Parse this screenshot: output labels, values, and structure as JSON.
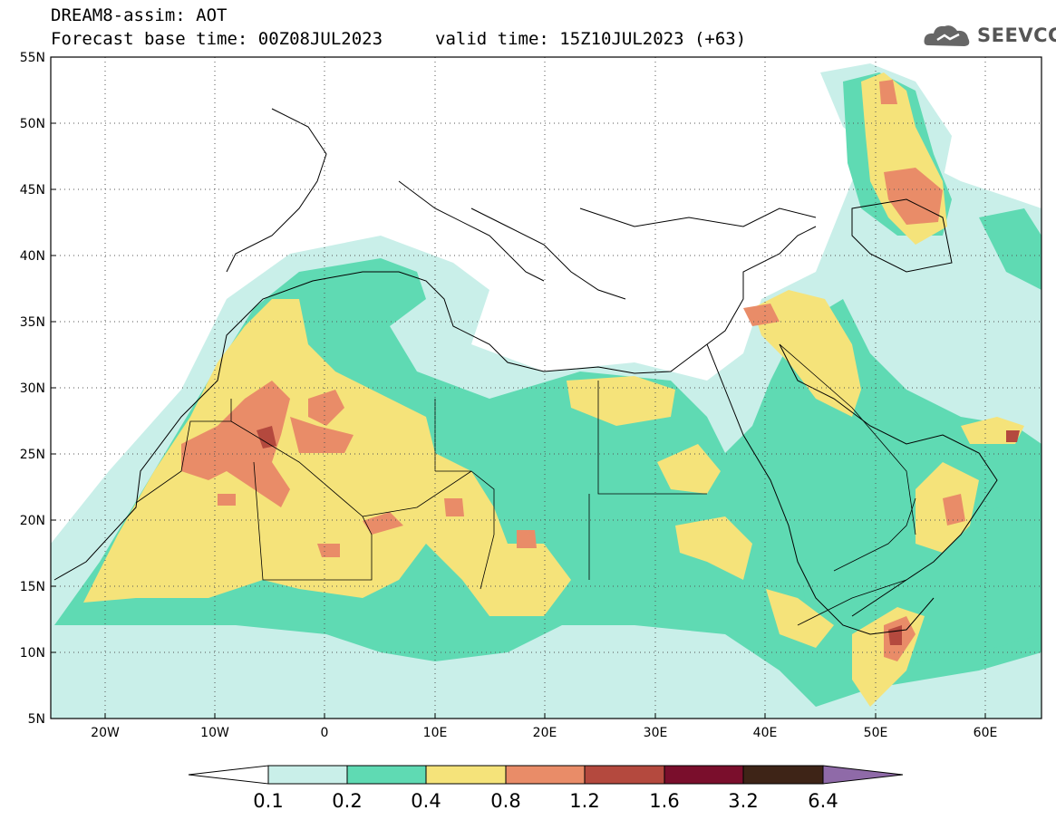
{
  "header": {
    "line1": "DREAM8-assim: AOT",
    "line2": "Forecast base time: 00Z08JUL2023",
    "valid": "valid time: 15Z10JUL2023 (+63)",
    "logo_text": "SEEVCCC",
    "logo_icon": "cloud-icon"
  },
  "map": {
    "lon_range": [
      -25,
      65
    ],
    "lat_range": [
      5,
      55
    ],
    "lat_ticks": [
      "5N",
      "10N",
      "15N",
      "20N",
      "25N",
      "30N",
      "35N",
      "40N",
      "45N",
      "50N",
      "55N"
    ],
    "lon_ticks": [
      "20W",
      "10W",
      "0",
      "10E",
      "20E",
      "30E",
      "40E",
      "50E",
      "60E"
    ],
    "grid": "dotted"
  },
  "colorbar": {
    "labels": [
      "0.1",
      "0.2",
      "0.4",
      "0.8",
      "1.2",
      "1.6",
      "3.2",
      "6.4"
    ],
    "colors": [
      "#ffffff",
      "#c9efe9",
      "#5fdab3",
      "#f5e37a",
      "#e98c68",
      "#b4493e",
      "#7a0e2c",
      "#3e2417",
      "#8f6aa8"
    ]
  }
}
